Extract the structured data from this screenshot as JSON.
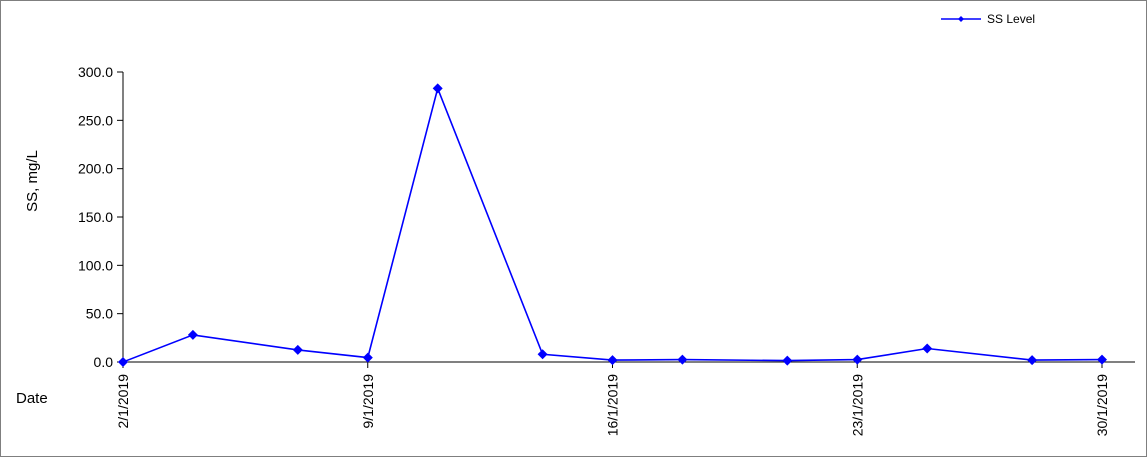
{
  "chart_data": {
    "type": "line",
    "xlabel": "Date",
    "ylabel": "SS, mg/L",
    "ylim": [
      0,
      300
    ],
    "yticks": [
      "0.0",
      "50.0",
      "100.0",
      "150.0",
      "200.0",
      "250.0",
      "300.0"
    ],
    "xlim": [
      "2019-01-02",
      "2019-01-30"
    ],
    "xticks": [
      "2/1/2019",
      "9/1/2019",
      "16/1/2019",
      "23/1/2019",
      "30/1/2019"
    ],
    "grid": false,
    "legend_position": "top-right",
    "series": [
      {
        "name": "SS Level",
        "color": "#0000ff",
        "marker": "diamond",
        "x": [
          "2019-01-02",
          "2019-01-04",
          "2019-01-07",
          "2019-01-09",
          "2019-01-11",
          "2019-01-14",
          "2019-01-16",
          "2019-01-18",
          "2019-01-21",
          "2019-01-23",
          "2019-01-25",
          "2019-01-28",
          "2019-01-30"
        ],
        "y": [
          0.0,
          28.0,
          12.5,
          4.5,
          283.0,
          8.0,
          2.0,
          2.5,
          1.5,
          2.5,
          14.0,
          2.0,
          2.5
        ]
      }
    ]
  }
}
